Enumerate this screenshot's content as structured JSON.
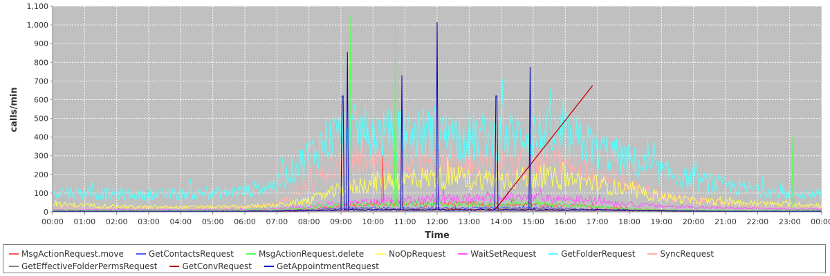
{
  "chart_data": {
    "type": "line",
    "title": "",
    "xlabel": "Time",
    "ylabel": "calls/min",
    "xlim": [
      "00:00",
      "24:00"
    ],
    "ylim": [
      0,
      1100
    ],
    "grid": true,
    "legend_position": "bottom",
    "plot_background": "#c0c0c0",
    "x_ticks": [
      "00:00",
      "01:00",
      "02:00",
      "03:00",
      "04:00",
      "05:00",
      "06:00",
      "07:00",
      "08:00",
      "09:00",
      "10:00",
      "11:00",
      "12:00",
      "13:00",
      "14:00",
      "15:00",
      "16:00",
      "17:00",
      "18:00",
      "19:00",
      "20:00",
      "21:00",
      "22:00",
      "23:00",
      "00:00"
    ],
    "y_ticks": [
      "0",
      "100",
      "200",
      "300",
      "400",
      "500",
      "600",
      "700",
      "800",
      "900",
      "1,000",
      "1,100"
    ],
    "x": [
      0,
      1,
      2,
      3,
      4,
      5,
      6,
      7,
      8,
      8.5,
      9,
      9.5,
      10,
      10.5,
      11,
      11.5,
      12,
      12.5,
      13,
      13.5,
      14,
      14.5,
      15,
      15.5,
      16,
      16.5,
      17,
      18,
      19,
      20,
      21,
      22,
      23,
      24
    ],
    "series": [
      {
        "name": "MsgActionRequest.move",
        "color": "#ff5555",
        "values": [
          5,
          5,
          5,
          5,
          5,
          5,
          6,
          8,
          15,
          20,
          30,
          40,
          40,
          45,
          45,
          40,
          40,
          40,
          40,
          40,
          40,
          40,
          40,
          35,
          35,
          30,
          25,
          15,
          10,
          8,
          6,
          5,
          5,
          5
        ],
        "spikes": [
          {
            "x": 10.3,
            "y": 300
          }
        ]
      },
      {
        "name": "GetContactsRequest",
        "color": "#5555ff",
        "values": [
          3,
          3,
          3,
          3,
          3,
          3,
          4,
          5,
          10,
          15,
          20,
          20,
          20,
          20,
          20,
          20,
          20,
          20,
          20,
          20,
          20,
          20,
          20,
          20,
          18,
          15,
          12,
          8,
          6,
          5,
          4,
          3,
          3,
          3
        ]
      },
      {
        "name": "MsgActionRequest.delete",
        "color": "#55ff55",
        "values": [
          8,
          8,
          8,
          8,
          8,
          8,
          10,
          12,
          20,
          30,
          40,
          40,
          40,
          40,
          40,
          40,
          40,
          40,
          40,
          40,
          40,
          40,
          40,
          40,
          35,
          30,
          25,
          15,
          10,
          8,
          8,
          8,
          8,
          8
        ],
        "spikes": [
          {
            "x": 9.3,
            "y": 1050
          },
          {
            "x": 10.7,
            "y": 1010
          },
          {
            "x": 23.1,
            "y": 410
          }
        ]
      },
      {
        "name": "NoOpRequest",
        "color": "#ffff55",
        "values": [
          40,
          35,
          30,
          25,
          25,
          25,
          28,
          35,
          60,
          90,
          120,
          140,
          160,
          170,
          175,
          180,
          185,
          180,
          175,
          175,
          175,
          180,
          185,
          180,
          175,
          165,
          150,
          110,
          80,
          60,
          50,
          45,
          40,
          35
        ]
      },
      {
        "name": "WaitSetRequest",
        "color": "#ff55ff",
        "values": [
          10,
          10,
          10,
          10,
          10,
          10,
          12,
          15,
          25,
          35,
          45,
          50,
          55,
          60,
          65,
          65,
          70,
          70,
          70,
          70,
          75,
          75,
          75,
          70,
          70,
          65,
          60,
          40,
          30,
          25,
          20,
          18,
          15,
          12
        ]
      },
      {
        "name": "GetFolderRequest",
        "color": "#55ffff",
        "values": [
          110,
          100,
          95,
          90,
          95,
          100,
          110,
          150,
          300,
          380,
          420,
          430,
          420,
          410,
          410,
          420,
          430,
          410,
          400,
          400,
          400,
          410,
          420,
          410,
          400,
          380,
          340,
          270,
          210,
          170,
          140,
          120,
          100,
          90
        ]
      },
      {
        "name": "SyncRequest",
        "color": "#ffafaf",
        "values": [
          20,
          20,
          20,
          20,
          20,
          20,
          25,
          40,
          150,
          220,
          250,
          260,
          260,
          260,
          260,
          270,
          270,
          260,
          260,
          260,
          260,
          260,
          260,
          260,
          250,
          230,
          200,
          140,
          90,
          60,
          40,
          30,
          25,
          20
        ]
      },
      {
        "name": "GetEffectiveFolderPermsRequest",
        "color": "#808080",
        "values": [
          2,
          2,
          2,
          2,
          2,
          2,
          3,
          4,
          8,
          12,
          15,
          15,
          15,
          15,
          15,
          15,
          15,
          15,
          15,
          15,
          15,
          15,
          15,
          15,
          14,
          12,
          10,
          6,
          4,
          3,
          2,
          2,
          2,
          2
        ]
      },
      {
        "name": "GetConvRequest",
        "color": "#c00000",
        "values": [
          2,
          2,
          2,
          2,
          2,
          2,
          3,
          4,
          6,
          8,
          10,
          10,
          10,
          10,
          10,
          10,
          10,
          10,
          10,
          10,
          10,
          10,
          10,
          10,
          10,
          10,
          10,
          8,
          6,
          4,
          3,
          2,
          2,
          2
        ],
        "trend": [
          {
            "x": 13.8,
            "y": 10
          },
          {
            "x": 16.85,
            "y": 675
          }
        ]
      },
      {
        "name": "GetAppointmentRequest",
        "color": "#0000c0",
        "values": [
          3,
          3,
          3,
          3,
          3,
          3,
          3,
          4,
          6,
          8,
          10,
          10,
          10,
          10,
          10,
          10,
          10,
          10,
          10,
          10,
          10,
          10,
          10,
          10,
          10,
          10,
          10,
          8,
          6,
          4,
          3,
          3,
          3,
          3
        ],
        "spikes": [
          {
            "x": 9.05,
            "y": 620
          },
          {
            "x": 9.2,
            "y": 855
          },
          {
            "x": 10.9,
            "y": 730
          },
          {
            "x": 12.0,
            "y": 1015
          },
          {
            "x": 13.85,
            "y": 620
          },
          {
            "x": 14.9,
            "y": 775
          }
        ]
      }
    ]
  }
}
